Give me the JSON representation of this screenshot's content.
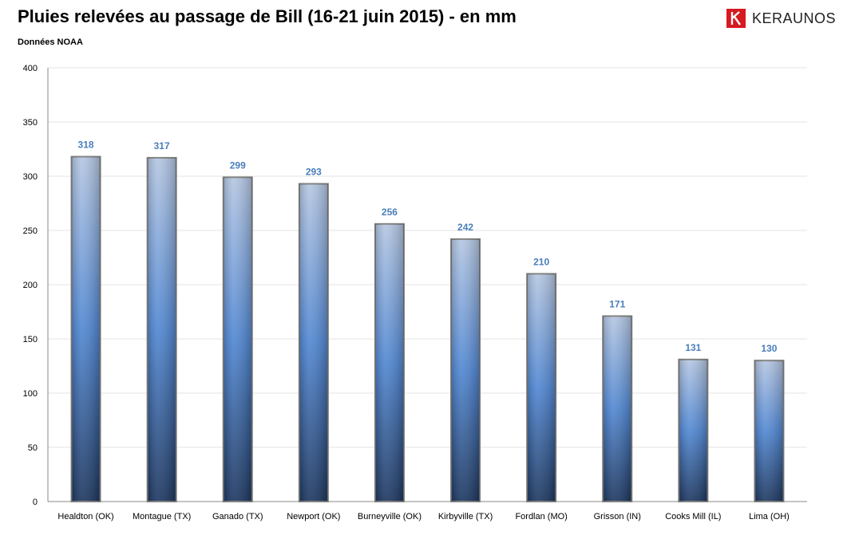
{
  "header": {
    "title": "Pluies relevées au passage de Bill (16-21 juin 2015)  - en mm",
    "subtitle": "Données NOAA"
  },
  "logo": {
    "text": "KERAUNOS",
    "mark_letter": "K",
    "mark_color": "#d71920"
  },
  "chart_data": {
    "type": "bar",
    "title": "Pluies relevées au passage de Bill (16-21 juin 2015)  - en mm",
    "subtitle": "Données NOAA",
    "xlabel": "",
    "ylabel": "",
    "ylim": [
      0,
      400
    ],
    "yticks": [
      0,
      50,
      100,
      150,
      200,
      250,
      300,
      350,
      400
    ],
    "grid": true,
    "legend": "none",
    "categories": [
      "Healdton (OK)",
      "Montague (TX)",
      "Ganado (TX)",
      "Newport (OK)",
      "Burneyville (OK)",
      "Kirbyville (TX)",
      "Fordlan (MO)",
      "Grisson (IN)",
      "Cooks Mill (IL)",
      "Lima (OH)"
    ],
    "values": [
      318,
      317,
      299,
      293,
      256,
      242,
      210,
      171,
      131,
      130
    ],
    "colors": {
      "bar_top": "#b4c6e2",
      "bar_mid": "#4f86d2",
      "bar_bottom": "#1b355e",
      "bar_border": "#7f7f7f",
      "value_label": "#4a7ebb",
      "grid": "#e3e3e3",
      "axis": "#888888"
    }
  }
}
